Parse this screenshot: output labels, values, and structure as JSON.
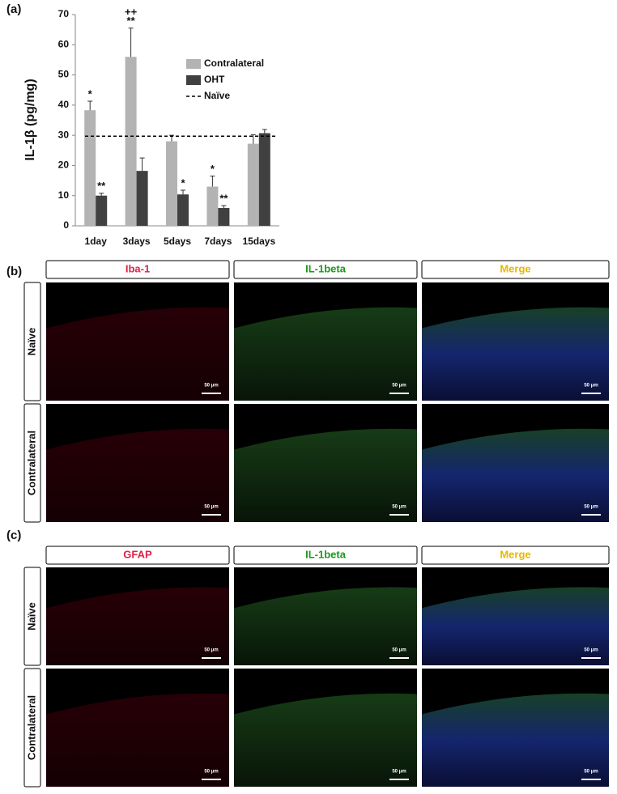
{
  "panel_labels": [
    "(a)",
    "(b)",
    "(c)"
  ],
  "chart_data": {
    "type": "bar",
    "ylabel": "IL-1β (pg/mg)",
    "categories": [
      "1day",
      "3days",
      "5days",
      "7days",
      "15days"
    ],
    "series": [
      {
        "name": "Contralateral",
        "color": "#b3b3b3",
        "values": [
          38.3,
          56,
          28,
          13,
          27.2
        ],
        "errors": [
          3,
          9.5,
          2,
          3.5,
          3
        ],
        "sig": [
          [
            "*"
          ],
          [
            "++",
            "**"
          ],
          [],
          [
            "*"
          ],
          []
        ]
      },
      {
        "name": "OHT",
        "color": "#404040",
        "values": [
          10,
          18.2,
          10.4,
          5.9,
          30.7
        ],
        "errors": [
          0.8,
          4.3,
          1.4,
          0.8,
          1.2
        ],
        "sig": [
          [
            "**"
          ],
          [],
          [
            "*"
          ],
          [
            "**"
          ],
          []
        ]
      }
    ],
    "reference_line": {
      "name": "Naïve",
      "value": 29.7
    },
    "ylim": [
      0,
      70
    ],
    "yticks": [
      0,
      10,
      20,
      30,
      40,
      50,
      60,
      70
    ]
  },
  "figure_b": {
    "columns": [
      "Iba-1",
      "IL-1beta",
      "Merge"
    ],
    "rows": [
      "Naïve",
      "Contralateral"
    ]
  },
  "figure_c": {
    "columns": [
      "GFAP",
      "IL-1beta",
      "Merge"
    ],
    "rows": [
      "Naïve",
      "Contralateral"
    ]
  },
  "scale_bar": "50 μm"
}
